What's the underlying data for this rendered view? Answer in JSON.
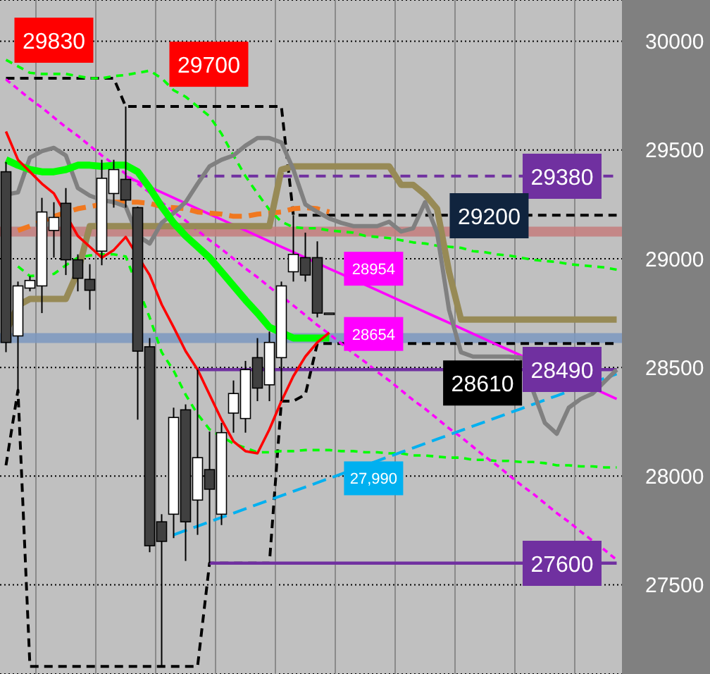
{
  "chart_data": {
    "type": "candlestick",
    "categories": [
      null,
      null,
      null,
      null,
      null,
      null,
      null,
      null,
      null,
      null,
      null,
      null,
      null,
      null,
      null,
      null,
      null,
      null,
      null,
      null,
      null,
      null,
      null,
      null,
      null,
      null,
      null,
      null,
      null,
      null,
      null,
      null,
      null,
      null,
      null,
      null,
      null,
      null,
      null,
      null,
      null,
      null,
      null,
      null,
      null,
      null,
      null,
      null,
      null,
      null,
      null,
      null
    ],
    "ohlc": [
      [
        29400,
        29445,
        28570,
        28615
      ],
      [
        28645,
        28895,
        28395,
        28875
      ],
      [
        28865,
        28920,
        28850,
        28900
      ],
      [
        28875,
        29280,
        28750,
        29215
      ],
      [
        29130,
        29260,
        29005,
        29190
      ],
      [
        29255,
        29325,
        28925,
        28995
      ],
      [
        28995,
        29020,
        28850,
        28910
      ],
      [
        28905,
        28975,
        28765,
        28855
      ],
      [
        29035,
        29455,
        28970,
        29370
      ],
      [
        29300,
        29455,
        29235,
        29410
      ],
      [
        29365,
        29700,
        29235,
        29270
      ],
      [
        29235,
        29240,
        28260,
        28575
      ],
      [
        28595,
        28635,
        27650,
        27680
      ],
      [
        27790,
        27825,
        27125,
        27700
      ],
      [
        27825,
        28315,
        27715,
        28270
      ],
      [
        28305,
        28330,
        27610,
        27790
      ],
      [
        27890,
        28490,
        27730,
        28085
      ],
      [
        28030,
        28205,
        27600,
        27940
      ],
      [
        27825,
        28245,
        27775,
        28200
      ],
      [
        28290,
        28440,
        28200,
        28380
      ],
      [
        28265,
        28530,
        28200,
        28490
      ],
      [
        28545,
        28635,
        28345,
        28405
      ],
      [
        28420,
        28665,
        28345,
        28615
      ],
      [
        28545,
        28895,
        28345,
        28875
      ],
      [
        28940,
        29200,
        28895,
        29020
      ],
      [
        29005,
        29120,
        28895,
        28925
      ],
      [
        29005,
        29080,
        28730,
        28750
      ],
      [
        28750,
        28750,
        28750,
        28750
      ],
      null,
      null,
      null,
      null,
      null,
      null,
      null,
      null,
      null,
      null,
      null,
      null,
      null,
      null,
      null,
      null,
      null,
      null,
      null,
      null,
      null,
      null,
      null,
      null
    ],
    "series": [
      {
        "type": "line",
        "color": "#000000",
        "line_style": "dashed",
        "values": [
          28050,
          28395,
          27125,
          27125,
          27125,
          27125,
          27125,
          27125,
          27125,
          27125,
          27125,
          27125,
          27125,
          27125,
          27125,
          27125,
          27125,
          27600,
          null,
          null,
          null,
          null,
          27600,
          28345,
          28345,
          28375,
          28610,
          28610,
          28610,
          null,
          null,
          null,
          null,
          null,
          28610,
          28610,
          28610,
          28610,
          28610,
          28610,
          28610,
          28610,
          28610,
          28610,
          28610,
          28610,
          28610,
          28610,
          28610,
          28610,
          28610,
          28610
        ]
      },
      {
        "type": "line",
        "color": "#000000",
        "line_style": "dashed",
        "values": [
          29830,
          29830,
          29830,
          29830,
          29830,
          29830,
          29830,
          29830,
          29830,
          29830,
          29700,
          29700,
          29700,
          29700,
          29700,
          29700,
          29700,
          29700,
          29700,
          29700,
          29700,
          29700,
          29700,
          29700,
          29200,
          29200,
          29200,
          29200,
          29200,
          29200,
          29200,
          29200,
          29200,
          29200,
          29200,
          29200,
          29200,
          29200,
          null,
          null,
          null,
          null,
          null,
          null,
          29200,
          29200,
          29200,
          29200,
          29200,
          29200,
          29200,
          29200
        ]
      },
      {
        "type": "line",
        "color": "#00ff00",
        "line_style": "dashed",
        "values": [
          29915,
          29885,
          29855,
          29850,
          29850,
          29850,
          29840,
          29830,
          29830,
          29840,
          29845,
          29855,
          29865,
          29830,
          29775,
          29745,
          29700,
          29655,
          29575,
          29475,
          29380,
          29300,
          29225,
          29170,
          29145,
          29140,
          29140,
          29130,
          29125,
          29120,
          29105,
          29100,
          29095,
          29085,
          29075,
          29070,
          29060,
          29055,
          29050,
          29035,
          29030,
          29020,
          29015,
          29005,
          28995,
          28990,
          28985,
          28975,
          28970,
          28965,
          28960,
          28950
        ]
      },
      {
        "type": "line",
        "color": "#00ff00",
        "line_style": "dashed",
        "values": [
          null,
          28965,
          28920,
          null,
          28930,
          28970,
          29005,
          29015,
          29020,
          29020,
          29010,
          null,
          28730,
          28570,
          28485,
          28375,
          28285,
          28215,
          null,
          28150,
          28130,
          28110,
          28110,
          28115,
          28115,
          28120,
          28120,
          28120,
          28115,
          28115,
          28110,
          28110,
          28105,
          28105,
          28095,
          28095,
          28090,
          28085,
          28085,
          28075,
          28075,
          28070,
          28070,
          28065,
          28065,
          28060,
          28050,
          28050,
          28045,
          28045,
          28040,
          28040
        ]
      },
      {
        "type": "line",
        "color": "#ff00ff",
        "line_style": "dashed",
        "values": [
          29825,
          29780,
          29735,
          29695,
          29650,
          29605,
          29565,
          29520,
          29475,
          29435,
          29390,
          29345,
          29305,
          29260,
          29215,
          29175,
          29130,
          29085,
          29045,
          29000,
          28955,
          28915,
          28870,
          null,
          28785,
          28740,
          28695,
          28654,
          28610,
          28565,
          28525,
          28480,
          28440,
          28395,
          28350,
          28310,
          28265,
          28220,
          28180,
          28135,
          28090,
          28050,
          28005,
          27960,
          27920,
          27875,
          27830,
          27790,
          27745,
          null,
          27660,
          27615
        ]
      },
      {
        "type": "line",
        "color": "#ff00ff",
        "line_style": "solid",
        "values": [
          null,
          null,
          null,
          null,
          null,
          null,
          null,
          null,
          null,
          null,
          29380,
          29355,
          29330,
          29305,
          29280,
          29255,
          29230,
          29205,
          29180,
          29155,
          29130,
          29105,
          29080,
          29055,
          29030,
          29005,
          null,
          28954,
          28930,
          null,
          null,
          28855,
          28830,
          28805,
          28780,
          28755,
          28730,
          28705,
          28680,
          28655,
          28630,
          28605,
          28580,
          28555,
          null,
          null,
          null,
          null,
          null,
          null,
          28380,
          28355
        ]
      },
      {
        "type": "line",
        "color": "#00b0f0",
        "line_style": "dashed",
        "values": [
          null,
          null,
          null,
          null,
          null,
          null,
          null,
          null,
          null,
          null,
          null,
          null,
          null,
          null,
          27730,
          27750,
          27770,
          27790,
          27810,
          27830,
          27850,
          27870,
          27890,
          27910,
          27930,
          27950,
          27970,
          27990,
          28010,
          null,
          null,
          28070,
          28090,
          28110,
          28130,
          28150,
          28170,
          28190,
          28210,
          28230,
          28250,
          28270,
          28290,
          28310,
          28330,
          28350,
          28370,
          null,
          null,
          null,
          28450,
          28470
        ]
      },
      {
        "type": "line",
        "color": "#7030a0",
        "line_style": "dashed",
        "values": [
          null,
          null,
          null,
          null,
          null,
          null,
          null,
          null,
          null,
          null,
          null,
          null,
          null,
          null,
          null,
          null,
          29380,
          29380,
          29380,
          29380,
          29380,
          29380,
          29380,
          29380,
          29380,
          29380,
          29380,
          29380,
          29380,
          29380,
          29380,
          29380,
          29380,
          29380,
          29380,
          29380,
          29380,
          29380,
          29380,
          29380,
          29380,
          29380,
          29380,
          29380,
          null,
          null,
          null,
          null,
          null,
          null,
          29380,
          29380
        ]
      },
      {
        "type": "line",
        "color": "#7030a0",
        "line_style": "solid",
        "values": [
          null,
          null,
          null,
          null,
          null,
          null,
          null,
          null,
          null,
          null,
          null,
          null,
          null,
          null,
          null,
          null,
          28490,
          28490,
          28490,
          28490,
          28490,
          28490,
          28490,
          28490,
          28490,
          28490,
          28490,
          28490,
          28490,
          28490,
          28490,
          28490,
          28490,
          28490,
          28490,
          28490,
          28490,
          null,
          null,
          null,
          null,
          null,
          null,
          null,
          null,
          null,
          null,
          null,
          null,
          null,
          28490,
          28490
        ]
      },
      {
        "type": "line",
        "color": "#7030a0",
        "line_style": "solid",
        "values": [
          null,
          null,
          null,
          null,
          null,
          null,
          null,
          null,
          null,
          null,
          null,
          null,
          null,
          null,
          null,
          null,
          null,
          27600,
          27600,
          27600,
          27600,
          27600,
          27600,
          27600,
          27600,
          27600,
          27600,
          27600,
          27600,
          27600,
          27600,
          27600,
          27600,
          27600,
          27600,
          27600,
          27600,
          27600,
          27600,
          27600,
          27600,
          27600,
          27600,
          27600,
          null,
          null,
          null,
          null,
          null,
          null,
          27600,
          27600
        ]
      },
      {
        "type": "line",
        "color": "#f07820",
        "line_style": "dashed",
        "values": [
          null,
          29130,
          29150,
          null,
          29195,
          null,
          29230,
          29240,
          null,
          29260,
          29260,
          29260,
          29255,
          29240,
          29235,
          29230,
          29215,
          29210,
          29205,
          29195,
          29195,
          29205,
          29210,
          29215,
          29230,
          29235,
          29230,
          29215,
          null,
          null,
          null,
          null,
          null,
          null,
          null,
          null,
          null,
          null,
          null,
          null,
          null,
          null,
          null,
          null,
          null,
          null,
          null,
          null,
          null,
          null,
          null,
          null
        ]
      },
      {
        "type": "line",
        "color": "#978a56",
        "line_style": "solid",
        "values": [
          28665,
          28785,
          28815,
          28815,
          28815,
          28815,
          28940,
          29150,
          29150,
          29150,
          29150,
          29150,
          29150,
          29150,
          29150,
          29150,
          29150,
          29150,
          29150,
          29150,
          29150,
          29150,
          29150,
          29410,
          29425,
          29425,
          29425,
          29425,
          29425,
          29425,
          29425,
          29425,
          29425,
          29340,
          29340,
          29295,
          29230,
          28940,
          28720,
          28720,
          28720,
          28720,
          28720,
          28720,
          28720,
          28720,
          28720,
          28720,
          28720,
          28720,
          28720,
          28720
        ]
      },
      {
        "type": "line",
        "color": "#808080",
        "line_style": "solid",
        "values": [
          29295,
          29305,
          29465,
          29495,
          29510,
          29475,
          29325,
          29290,
          29270,
          29260,
          29240,
          29105,
          29070,
          29165,
          29210,
          29260,
          29345,
          29425,
          29455,
          29475,
          29520,
          29555,
          29555,
          29535,
          29410,
          29250,
          29215,
          29185,
          29165,
          29150,
          29150,
          29150,
          29170,
          29125,
          29140,
          29260,
          29120,
          28765,
          28570,
          28550,
          28550,
          28550,
          28550,
          28545,
          null,
          28245,
          28195,
          28315,
          28355,
          28380,
          28435,
          28490
        ]
      },
      {
        "type": "line",
        "color": "#00ff00",
        "line_style": "solid",
        "values": [
          29455,
          29430,
          29410,
          29400,
          29400,
          29410,
          29430,
          29430,
          29425,
          29430,
          29430,
          29400,
          29325,
          29240,
          29165,
          29105,
          29055,
          29005,
          28940,
          28875,
          28810,
          28750,
          28685,
          null,
          28635,
          28635,
          28635,
          28635,
          null,
          null,
          null,
          null,
          null,
          null,
          null,
          null,
          null,
          null,
          null,
          null,
          null,
          null,
          null,
          null,
          null,
          null,
          null,
          null,
          null,
          null,
          null,
          null
        ]
      },
      {
        "type": "line",
        "color": "#ff0000",
        "line_style": "solid",
        "values": [
          29585,
          29455,
          29400,
          29345,
          29300,
          null,
          29105,
          29055,
          29005,
          29040,
          29100,
          null,
          28925,
          28790,
          28685,
          28575,
          28490,
          28375,
          28260,
          28160,
          28115,
          28105,
          28215,
          28345,
          28460,
          28550,
          28615,
          28660,
          null,
          null,
          null,
          null,
          null,
          null,
          null,
          null,
          null,
          null,
          null,
          null,
          null,
          null,
          null,
          null,
          null,
          null,
          null,
          null,
          null,
          null,
          null,
          null
        ]
      }
    ],
    "ref_lines": [
      {
        "axis": "y",
        "value": 29125,
        "color": "#c47c7c"
      },
      {
        "axis": "y",
        "value": 28635,
        "color": "#7b98bf"
      }
    ],
    "annotations": [
      {
        "text": "29830",
        "y": 29830
      },
      {
        "text": "29700",
        "y": 29700
      },
      "29380",
      "29200",
      {
        "text": "28954",
        "y": 28954
      },
      {
        "text": "28654",
        "y": 28654
      },
      {
        "text": "28610",
        "y": 28610
      },
      "28490",
      {
        "text": "27,990",
        "y": 27990
      },
      "27600"
    ],
    "ylim": [
      27090,
      30190
    ],
    "yticks": [
      27500,
      28000,
      28500,
      29000,
      29500,
      30000
    ],
    "grid": true,
    "tick_labels": "y"
  }
}
